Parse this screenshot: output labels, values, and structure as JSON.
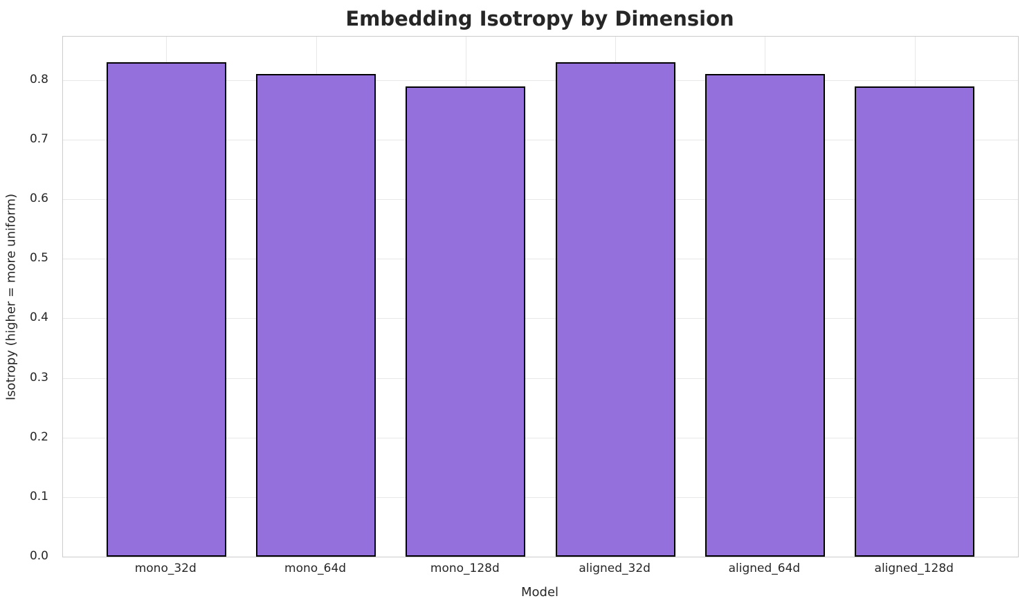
{
  "chart_data": {
    "type": "bar",
    "title": "Embedding Isotropy by Dimension",
    "xlabel": "Model",
    "ylabel": "Isotropy (higher = more uniform)",
    "categories": [
      "mono_32d",
      "mono_64d",
      "mono_128d",
      "aligned_32d",
      "aligned_64d",
      "aligned_128d"
    ],
    "values": [
      0.83,
      0.81,
      0.79,
      0.83,
      0.81,
      0.79
    ],
    "ylim": [
      0,
      0.873
    ],
    "yticks": [
      0.0,
      0.1,
      0.2,
      0.3,
      0.4,
      0.5,
      0.6,
      0.7,
      0.8
    ],
    "xlim": [
      -0.69,
      5.69
    ],
    "bar_width": 0.8,
    "grid": true,
    "legend": "none",
    "colors": {
      "bar_fill": "#9370DB",
      "bar_edge": "#000000",
      "grid": "#e7e7e7",
      "spine": "#cbcbcb",
      "text": "#262626",
      "background": "#ffffff"
    }
  }
}
